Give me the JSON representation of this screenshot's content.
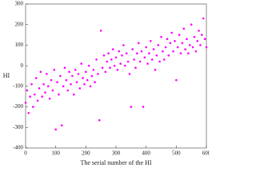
{
  "chart_data": {
    "type": "scatter",
    "x_label": "The serial number of the HI",
    "y_label": "HI",
    "color": "#ff00ff",
    "grid": false,
    "xlim": [
      0,
      600
    ],
    "xticks": [
      0,
      100,
      200,
      300,
      400,
      500,
      600
    ],
    "ylim": [
      -400,
      300
    ],
    "yticks": [
      -400,
      -300,
      -200,
      -100,
      0,
      100,
      200,
      300
    ],
    "x": [
      0,
      5,
      10,
      15,
      20,
      25,
      30,
      35,
      40,
      45,
      50,
      55,
      60,
      65,
      70,
      75,
      80,
      85,
      90,
      95,
      100,
      105,
      110,
      115,
      120,
      125,
      130,
      135,
      140,
      145,
      150,
      155,
      160,
      165,
      170,
      175,
      180,
      185,
      190,
      195,
      200,
      205,
      210,
      215,
      220,
      225,
      230,
      235,
      240,
      245,
      250,
      255,
      260,
      265,
      270,
      275,
      280,
      285,
      290,
      295,
      300,
      305,
      310,
      315,
      320,
      325,
      330,
      335,
      340,
      345,
      350,
      355,
      360,
      365,
      370,
      375,
      380,
      385,
      390,
      395,
      400,
      405,
      410,
      415,
      420,
      425,
      430,
      435,
      440,
      445,
      450,
      455,
      460,
      465,
      470,
      475,
      480,
      485,
      490,
      495,
      500,
      505,
      510,
      515,
      520,
      525,
      530,
      535,
      540,
      545,
      550,
      555,
      560,
      565,
      570,
      575,
      580,
      585,
      590,
      595,
      600
    ],
    "y": [
      -180,
      -120,
      -230,
      -150,
      -90,
      -200,
      -140,
      -60,
      -170,
      -110,
      -30,
      -150,
      -90,
      -130,
      -40,
      -100,
      -160,
      -70,
      -120,
      -20,
      -310,
      -80,
      -140,
      -50,
      -290,
      -100,
      -10,
      -70,
      -120,
      -30,
      -90,
      -50,
      -140,
      -20,
      -80,
      -40,
      -110,
      10,
      -60,
      -90,
      -30,
      -70,
      0,
      -100,
      -50,
      -20,
      -80,
      30,
      -40,
      -265,
      170,
      -10,
      50,
      -30,
      20,
      60,
      -10,
      30,
      80,
      0,
      40,
      -20,
      70,
      10,
      50,
      100,
      0,
      60,
      20,
      -40,
      -200,
      80,
      30,
      -10,
      60,
      110,
      20,
      70,
      -200,
      40,
      90,
      10,
      60,
      120,
      30,
      80,
      -20,
      50,
      100,
      20,
      140,
      70,
      30,
      90,
      130,
      50,
      110,
      160,
      70,
      120,
      -70,
      90,
      150,
      60,
      110,
      180,
      80,
      130,
      60,
      100,
      200,
      90,
      140,
      70,
      120,
      170,
      100,
      150,
      230,
      130,
      90
    ]
  }
}
